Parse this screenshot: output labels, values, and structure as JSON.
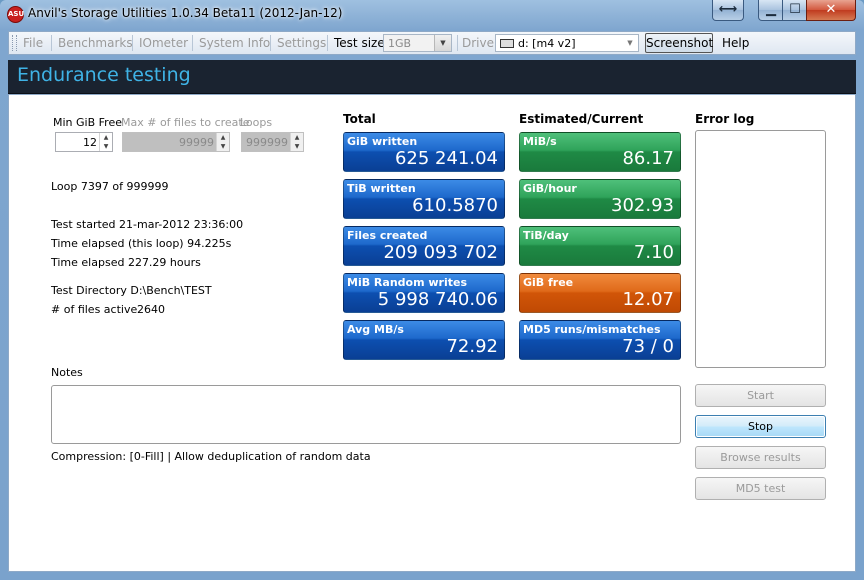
{
  "window": {
    "title": "Anvil's Storage Utilities 1.0.34 Beta11 (2012-Jan-12)",
    "app_icon_text": "ASU"
  },
  "caption_buttons": {
    "swap": "⟷",
    "minimize": "▁",
    "maximize": "☐",
    "close": "✕"
  },
  "toolbar": {
    "file": "File",
    "benchmarks": "Benchmarks",
    "iometer": "IOmeter",
    "system_info": "System Info",
    "settings": "Settings",
    "test_size_label": "Test size",
    "test_size_value": "1GB",
    "drive_label": "Drive",
    "drive_value": "d: [m4 v2]",
    "screenshot": "Screenshot",
    "help": "Help"
  },
  "header": {
    "title": "Endurance testing"
  },
  "params": {
    "min_gib_free_label": "Min GiB Free",
    "min_gib_free_value": "12",
    "max_files_label": "Max # of files to create",
    "max_files_value": "99999",
    "loops_label": "Loops",
    "loops_value": "999999"
  },
  "status": {
    "loop": "Loop 7397 of 999999",
    "test_started": "Test started 21-mar-2012 23:36:00",
    "time_elapsed_loop": "Time elapsed (this loop) 94.225s",
    "time_elapsed": "Time elapsed 227.29 hours",
    "test_directory": "Test Directory D:\\Bench\\TEST",
    "files_active_label": "# of files active",
    "files_active_value": "2640"
  },
  "sections": {
    "total": "Total",
    "estimated": "Estimated/Current",
    "error_log": "Error log"
  },
  "total_tiles": [
    {
      "label": "GiB written",
      "value": "625 241.04"
    },
    {
      "label": "TiB written",
      "value": "610.5870"
    },
    {
      "label": "Files created",
      "value": "209 093 702"
    },
    {
      "label": "MiB Random writes",
      "value": "5 998 740.06"
    },
    {
      "label": "Avg MB/s",
      "value": "72.92"
    }
  ],
  "estimated_tiles": [
    {
      "label": "MiB/s",
      "value": "86.17"
    },
    {
      "label": "GiB/hour",
      "value": "302.93"
    },
    {
      "label": "TiB/day",
      "value": "7.10"
    },
    {
      "label": "GiB free",
      "value": "12.07"
    },
    {
      "label": "MD5 runs/mismatches",
      "value": "73 / 0"
    }
  ],
  "colors": {
    "total_tile": "#1e69cc",
    "estimated_tile": "#2fa35a",
    "warning_tile": "#e06a1a",
    "header_text": "#3fb3e6"
  },
  "notes": {
    "label": "Notes",
    "value": ""
  },
  "compression": "Compression: [0-Fill] | Allow deduplication of random data",
  "buttons": {
    "start": "Start",
    "stop": "Stop",
    "browse": "Browse results",
    "md5": "MD5 test"
  }
}
